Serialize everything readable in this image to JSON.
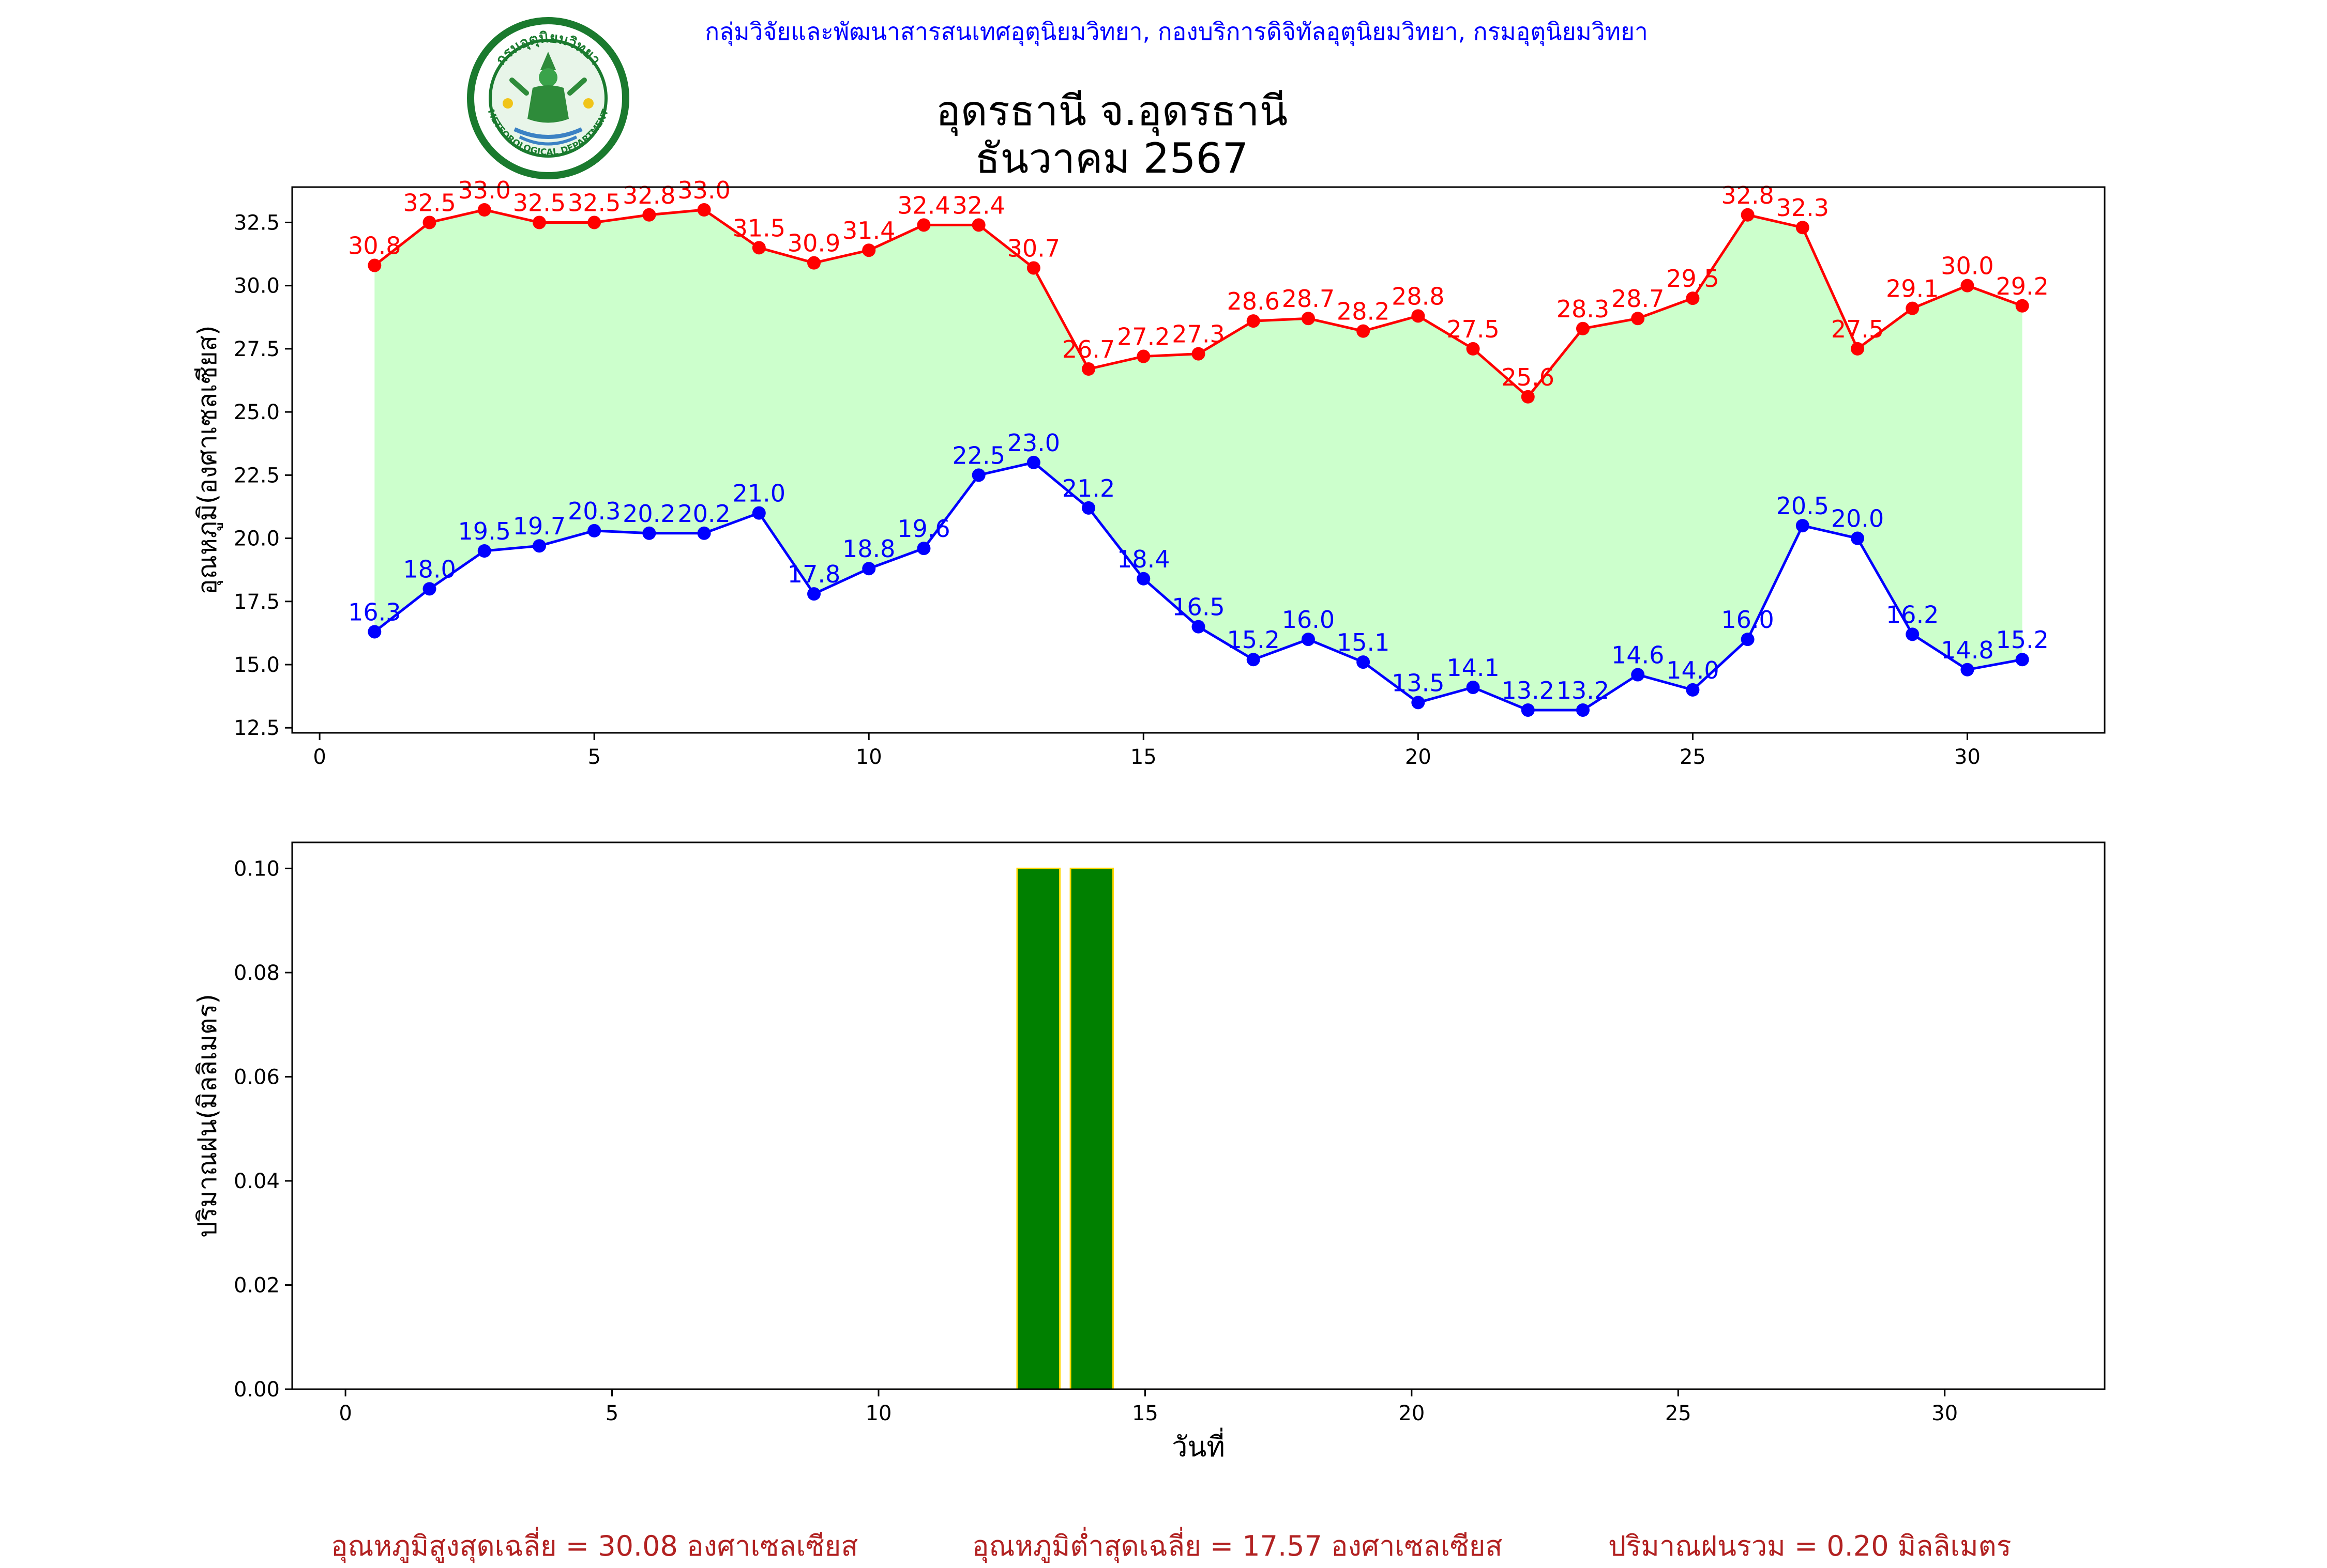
{
  "header": {
    "org_line": "กลุ่มวิจัยและพัฒนาสารสนเทศอุตุนิยมวิทยา, กองบริการดิจิทัลอุตุนิยมวิทยา, กรมอุตุนิยมวิทยา",
    "title_station": "อุดรธานี จ.อุดรธานี",
    "title_period": "ธันวาคม 2567",
    "logo": {
      "top_text": "กรมอุตุนิยมวิทยา",
      "bottom_text": "METEOROLOGICAL DEPARTMENT",
      "ring_color": "#1a7a2e",
      "icon": "meteorological-department-seal-icon"
    }
  },
  "chart_data": [
    {
      "type": "line",
      "xlabel": "",
      "ylabel": "อุณหภูมิ(องศาเซลเซียส)",
      "xlim": [
        -0.5,
        32.5
      ],
      "ylim": [
        12.3,
        33.9
      ],
      "xticks": [
        0,
        5,
        10,
        15,
        20,
        25,
        30
      ],
      "yticks": [
        12.5,
        15.0,
        17.5,
        20.0,
        22.5,
        25.0,
        27.5,
        30.0,
        32.5
      ],
      "x": [
        1,
        2,
        3,
        4,
        5,
        6,
        7,
        8,
        9,
        10,
        11,
        12,
        13,
        14,
        15,
        16,
        17,
        18,
        19,
        20,
        21,
        22,
        23,
        24,
        25,
        26,
        27,
        28,
        29,
        30,
        31
      ],
      "fill_between_color": "#ccffcc",
      "series": [
        {
          "name": "",
          "color": "#ff0000",
          "values": [
            30.8,
            32.5,
            33.0,
            32.5,
            32.5,
            32.8,
            33.0,
            31.5,
            30.9,
            31.4,
            32.4,
            32.4,
            30.7,
            26.7,
            27.2,
            27.3,
            28.6,
            28.7,
            28.2,
            28.8,
            27.5,
            25.6,
            28.3,
            28.7,
            29.5,
            32.8,
            32.3,
            27.5,
            29.1,
            30.0,
            29.2
          ]
        },
        {
          "name": "",
          "color": "#0000ff",
          "values": [
            16.3,
            18.0,
            19.5,
            19.7,
            20.3,
            20.2,
            20.2,
            21.0,
            17.8,
            18.8,
            19.6,
            22.5,
            23.0,
            21.2,
            18.4,
            16.5,
            15.2,
            16.0,
            15.1,
            13.5,
            14.1,
            13.2,
            13.2,
            14.6,
            14.0,
            16.0,
            20.5,
            20.0,
            16.2,
            14.8,
            15.2
          ]
        }
      ],
      "grid": false
    },
    {
      "type": "bar",
      "xlabel": "วันที่",
      "ylabel": "ปริมาณฝน(มิลลิเมตร)",
      "xlim": [
        -1,
        33
      ],
      "ylim": [
        0,
        0.105
      ],
      "xticks": [
        0,
        5,
        10,
        15,
        20,
        25,
        30
      ],
      "yticks": [
        0.0,
        0.02,
        0.04,
        0.06,
        0.08,
        0.1
      ],
      "bar_color": "#008000",
      "bar_edge_color": "#ffd700",
      "x": [
        1,
        2,
        3,
        4,
        5,
        6,
        7,
        8,
        9,
        10,
        11,
        12,
        13,
        14,
        15,
        16,
        17,
        18,
        19,
        20,
        21,
        22,
        23,
        24,
        25,
        26,
        27,
        28,
        29,
        30,
        31
      ],
      "values": [
        0,
        0,
        0,
        0,
        0,
        0,
        0,
        0,
        0,
        0,
        0,
        0,
        0.1,
        0.1,
        0,
        0,
        0,
        0,
        0,
        0,
        0,
        0,
        0,
        0,
        0,
        0,
        0,
        0,
        0,
        0,
        0
      ],
      "grid": false
    }
  ],
  "summary": {
    "avg_max": "อุณหภูมิสูงสุดเฉลี่ย = 30.08 องศาเซลเซียส",
    "avg_min": "อุณหภูมิต่ำสุดเฉลี่ย = 17.57 องศาเซลเซียส",
    "rain_total": "ปริมาณฝนรวม = 0.20 มิลลิเมตร"
  }
}
